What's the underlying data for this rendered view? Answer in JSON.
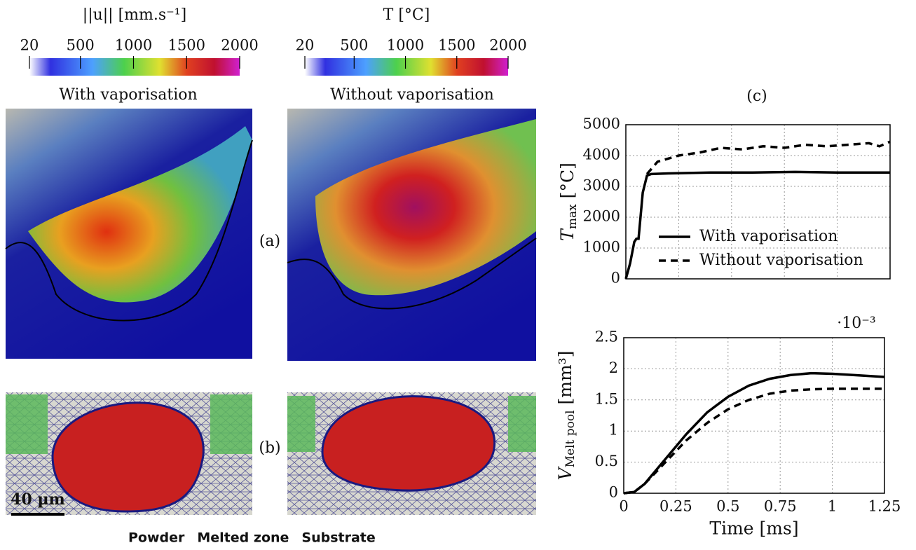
{
  "figure": {
    "colorbars": [
      {
        "title": "||u|| [mm.s⁻¹]",
        "lim": [
          20,
          2000
        ],
        "ticks": [
          20,
          500,
          1000,
          1500,
          2000
        ]
      },
      {
        "title": "T [°C]",
        "lim": [
          20,
          2000
        ],
        "ticks": [
          20,
          500,
          1000,
          1500,
          2000
        ]
      }
    ],
    "columns": [
      "With vaporisation",
      "Without vaporisation"
    ],
    "panel_labels": [
      "(a)",
      "(b)",
      "(c)"
    ],
    "scale_bar": "40 µm",
    "legend": [
      {
        "name": "Powder",
        "color": "#5cb85c"
      },
      {
        "name": "Melted zone",
        "color": "#d62728"
      },
      {
        "name": "Substrate",
        "color": "#8c8c8c"
      }
    ]
  },
  "chart_data": [
    {
      "type": "line",
      "ylabel": {
        "main": "T",
        "sub": "max",
        "unit": "[°C]"
      },
      "xlim": [
        0,
        1.25
      ],
      "xticks": [
        0,
        0.25,
        0.5,
        0.75,
        1,
        1.25
      ],
      "ylim": [
        0,
        5000
      ],
      "yticks": [
        0,
        1000,
        2000,
        3000,
        4000,
        5000
      ],
      "grid": true,
      "legend": "lower right",
      "series": [
        {
          "name": "With vaporisation",
          "color": "#000000",
          "style": "solid",
          "x": [
            0,
            0.02,
            0.04,
            0.05,
            0.06,
            0.08,
            0.1,
            0.12,
            0.2,
            0.4,
            0.6,
            0.8,
            1.0,
            1.25
          ],
          "values": [
            0,
            500,
            1200,
            1300,
            1300,
            2800,
            3350,
            3400,
            3420,
            3450,
            3450,
            3470,
            3450,
            3450
          ]
        },
        {
          "name": "Without vaporisation",
          "color": "#000000",
          "style": "dashed",
          "x": [
            0.1,
            0.15,
            0.25,
            0.35,
            0.45,
            0.55,
            0.65,
            0.75,
            0.85,
            0.95,
            1.05,
            1.15,
            1.2,
            1.25
          ],
          "values": [
            3400,
            3800,
            4000,
            4100,
            4250,
            4200,
            4300,
            4250,
            4350,
            4300,
            4350,
            4400,
            4300,
            4450
          ]
        }
      ]
    },
    {
      "type": "line",
      "xlabel": "Time [ms]",
      "ylabel": {
        "main": "V",
        "sub": "Melt pool",
        "unit": "[mm³]"
      },
      "multiplier": "·10⁻³",
      "xlim": [
        0,
        1.25
      ],
      "xticks": [
        0,
        0.25,
        0.5,
        0.75,
        1,
        1.25
      ],
      "ylim": [
        0,
        2.5
      ],
      "yticks": [
        0,
        0.5,
        1,
        1.5,
        2,
        2.5
      ],
      "grid": true,
      "series": [
        {
          "name": "With vaporisation",
          "color": "#000000",
          "style": "solid",
          "x": [
            0,
            0.05,
            0.1,
            0.2,
            0.3,
            0.4,
            0.5,
            0.6,
            0.7,
            0.8,
            0.9,
            1.0,
            1.1,
            1.25
          ],
          "values": [
            0,
            0.02,
            0.15,
            0.55,
            0.95,
            1.3,
            1.55,
            1.73,
            1.84,
            1.9,
            1.93,
            1.92,
            1.9,
            1.87
          ]
        },
        {
          "name": "Without vaporisation",
          "color": "#000000",
          "style": "dashed",
          "x": [
            0,
            0.05,
            0.1,
            0.2,
            0.3,
            0.4,
            0.5,
            0.6,
            0.7,
            0.8,
            0.9,
            1.0,
            1.25
          ],
          "values": [
            0,
            0.02,
            0.15,
            0.5,
            0.85,
            1.13,
            1.35,
            1.5,
            1.6,
            1.65,
            1.67,
            1.68,
            1.68
          ]
        }
      ]
    }
  ]
}
